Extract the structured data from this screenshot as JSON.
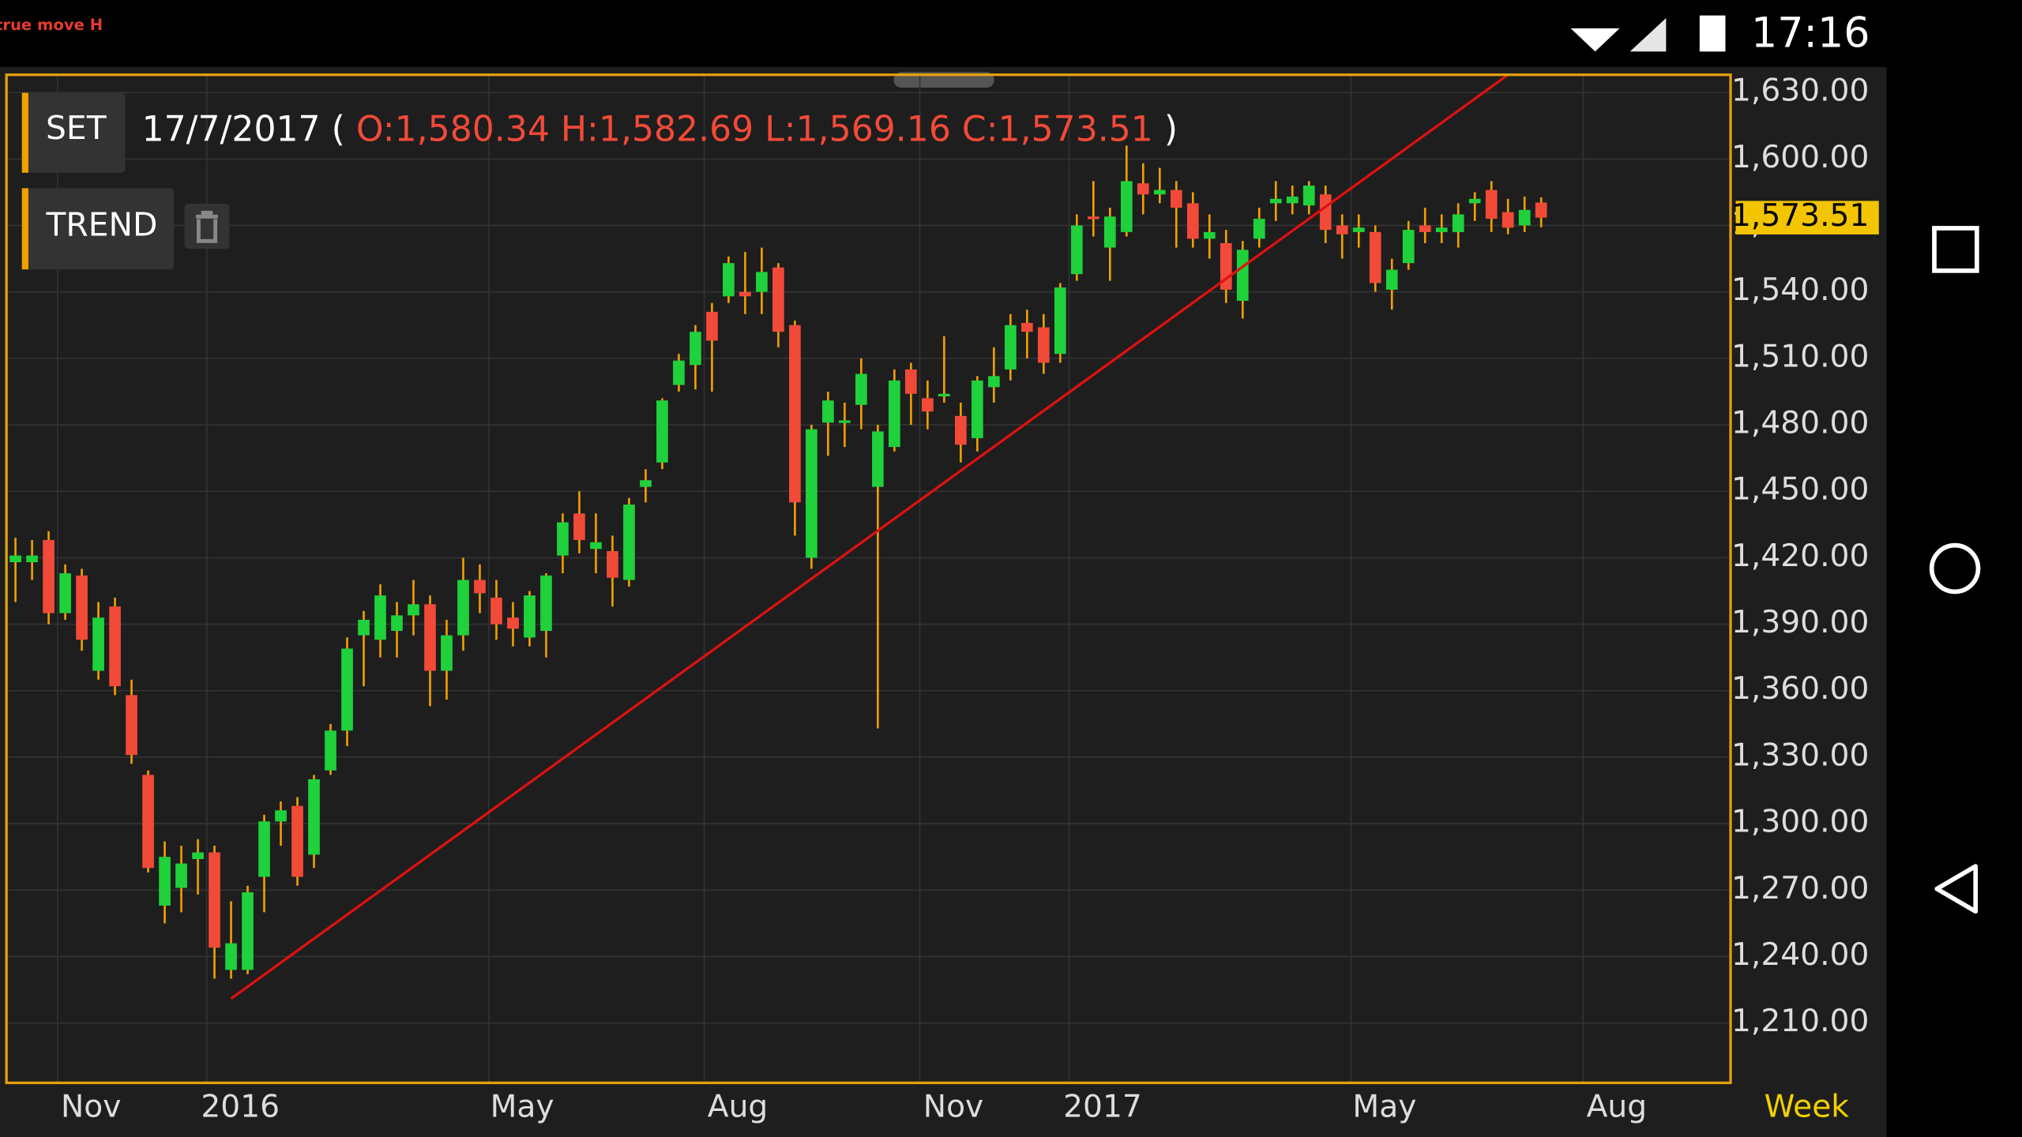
{
  "status_bar": {
    "carrier": "true move H",
    "time": "17:16"
  },
  "chart_data": {
    "type": "candlestick",
    "symbol": "SET",
    "date": "17/7/2017",
    "brackets": [
      "(",
      ")"
    ],
    "ohlc_labels": [
      "O:1,580.34",
      "H:1,582.69",
      "L:1,569.16",
      "C:1,573.51"
    ],
    "study": "TREND",
    "period": "Week",
    "categories": [
      null,
      null,
      null,
      "Nov",
      null,
      null,
      null,
      null,
      null,
      null,
      null,
      null,
      "2016",
      null,
      null,
      null,
      null,
      null,
      null,
      null,
      null,
      null,
      null,
      null,
      null,
      null,
      null,
      null,
      null,
      "May",
      null,
      null,
      null,
      null,
      null,
      null,
      null,
      null,
      null,
      null,
      null,
      null,
      "Aug",
      null,
      null,
      null,
      null,
      null,
      null,
      null,
      null,
      null,
      null,
      null,
      null,
      "Nov",
      null,
      null,
      null,
      null,
      null,
      null,
      null,
      null,
      "2017",
      null,
      null,
      null,
      null,
      null,
      null,
      null,
      null,
      null,
      null,
      null,
      null,
      null,
      null,
      null,
      null,
      "May",
      null,
      null,
      null,
      null,
      null,
      null,
      null,
      null,
      null,
      null,
      null,
      null,
      null,
      "Aug",
      null,
      null,
      null,
      null,
      null,
      null,
      null,
      null
    ],
    "open": [
      1418,
      1418,
      1428,
      1395,
      1412,
      1369,
      1398,
      1358,
      1322,
      1263,
      1271,
      1284,
      1287,
      1234,
      1234,
      1276,
      1301,
      1308,
      1286,
      1324,
      1342,
      1385,
      1383,
      1387,
      1394,
      1399,
      1369,
      1385,
      1410,
      1402,
      1393,
      1384,
      1387,
      1421,
      1440,
      1424,
      1423,
      1410,
      1452,
      1463,
      1498,
      1507,
      1531,
      1538,
      1540,
      1540,
      1551,
      1525,
      1420,
      1481,
      1481,
      1489,
      1452,
      1470,
      1505,
      1492,
      1493,
      1484,
      1474,
      1497,
      1505,
      1526,
      1524,
      1512,
      1548,
      1574,
      1560,
      1567,
      1589,
      1584,
      1586,
      1580,
      1564,
      1562,
      1536,
      1564,
      1580,
      1580,
      1579,
      1584,
      1570,
      1567,
      1567,
      1541,
      1553,
      1570,
      1567,
      1567,
      1580,
      1586,
      1576,
      1570,
      1580.34,
      null,
      null,
      null,
      null,
      null,
      null,
      null,
      null,
      null,
      null,
      null
    ],
    "high": [
      1429,
      1428,
      1432,
      1417,
      1415,
      1400,
      1402,
      1365,
      1324,
      1292,
      1290,
      1293,
      1290,
      1265,
      1272,
      1304,
      1310,
      1312,
      1322,
      1345,
      1384,
      1396,
      1408,
      1400,
      1410,
      1403,
      1392,
      1420,
      1417,
      1410,
      1400,
      1405,
      1413,
      1440,
      1450,
      1440,
      1430,
      1447,
      1460,
      1492,
      1512,
      1525,
      1535,
      1556,
      1558,
      1560,
      1553,
      1527,
      1480,
      1495,
      1490,
      1510,
      1480,
      1505,
      1508,
      1500,
      1520,
      1490,
      1502,
      1515,
      1530,
      1532,
      1530,
      1544,
      1575,
      1590,
      1578,
      1606,
      1598,
      1596,
      1590,
      1585,
      1575,
      1568,
      1563,
      1578,
      1590,
      1588,
      1590,
      1588,
      1575,
      1575,
      1570,
      1555,
      1572,
      1578,
      1575,
      1580,
      1585,
      1590,
      1582,
      1583,
      1582.69,
      null,
      null,
      null,
      null,
      null,
      null,
      null,
      null,
      null,
      null,
      null
    ],
    "low": [
      1400,
      1410,
      1390,
      1392,
      1378,
      1365,
      1358,
      1327,
      1278,
      1255,
      1260,
      1268,
      1230,
      1230,
      1232,
      1260,
      1290,
      1272,
      1280,
      1322,
      1335,
      1362,
      1375,
      1375,
      1385,
      1353,
      1356,
      1378,
      1395,
      1383,
      1380,
      1380,
      1375,
      1413,
      1422,
      1413,
      1398,
      1407,
      1445,
      1460,
      1495,
      1496,
      1495,
      1535,
      1530,
      1530,
      1515,
      1430,
      1415,
      1466,
      1470,
      1478,
      1343,
      1468,
      1480,
      1478,
      1490,
      1463,
      1468,
      1490,
      1500,
      1510,
      1503,
      1508,
      1545,
      1565,
      1545,
      1565,
      1575,
      1580,
      1560,
      1560,
      1555,
      1535,
      1528,
      1560,
      1572,
      1575,
      1575,
      1562,
      1555,
      1560,
      1540,
      1532,
      1550,
      1562,
      1562,
      1560,
      1572,
      1567,
      1566,
      1567,
      1569.16,
      null,
      null,
      null,
      null,
      null,
      null,
      null,
      null,
      null,
      null,
      null
    ],
    "close": [
      1421,
      1421,
      1395,
      1413,
      1383,
      1393,
      1362,
      1331,
      1280,
      1285,
      1282,
      1287,
      1244,
      1246,
      1269,
      1301,
      1306,
      1276,
      1320,
      1342,
      1379,
      1392,
      1403,
      1394,
      1399,
      1369,
      1385,
      1410,
      1404,
      1390,
      1388,
      1403,
      1412,
      1436,
      1428,
      1427,
      1411,
      1444,
      1455,
      1491,
      1509,
      1522,
      1518,
      1553,
      1538,
      1549,
      1522,
      1445,
      1478,
      1491,
      1482,
      1503,
      1477,
      1500,
      1494,
      1486,
      1494,
      1471,
      1500,
      1502,
      1525,
      1522,
      1508,
      1542,
      1570,
      1573,
      1574,
      1590,
      1584,
      1586,
      1578,
      1564,
      1567,
      1541,
      1559,
      1573,
      1582,
      1583,
      1588,
      1568,
      1566,
      1569,
      1544,
      1550,
      1568,
      1567,
      1569,
      1575,
      1582,
      1573,
      1569,
      1577,
      1573.51,
      null,
      null,
      null,
      null,
      null,
      null,
      null,
      null,
      null,
      null,
      null
    ],
    "up_color": "#1fd13b",
    "down_color": "#f24a38",
    "wick_color": "#f2a000",
    "ylim": [
      1183,
      1638
    ],
    "yticks": [
      {
        "value": 1210,
        "label": "1,210.00"
      },
      {
        "value": 1240,
        "label": "1,240.00"
      },
      {
        "value": 1270,
        "label": "1,270.00"
      },
      {
        "value": 1300,
        "label": "1,300.00"
      },
      {
        "value": 1330,
        "label": "1,330.00"
      },
      {
        "value": 1360,
        "label": "1,360.00"
      },
      {
        "value": 1390,
        "label": "1,390.00"
      },
      {
        "value": 1420,
        "label": "1,420.00"
      },
      {
        "value": 1450,
        "label": "1,450.00"
      },
      {
        "value": 1480,
        "label": "1,480.00"
      },
      {
        "value": 1510,
        "label": "1,510.00"
      },
      {
        "value": 1540,
        "label": "1,540.00"
      },
      {
        "value": 1570,
        "label": "1,570.00"
      },
      {
        "value": 1600,
        "label": "1,600.00"
      },
      {
        "value": 1630,
        "label": "1,630.00"
      }
    ],
    "grid": true,
    "last_value_label": "1,573.51",
    "trend_line": {
      "color": "#e01010",
      "from": {
        "category": 13,
        "value": 1221
      },
      "to": {
        "category": 90,
        "value": 1638
      }
    }
  }
}
